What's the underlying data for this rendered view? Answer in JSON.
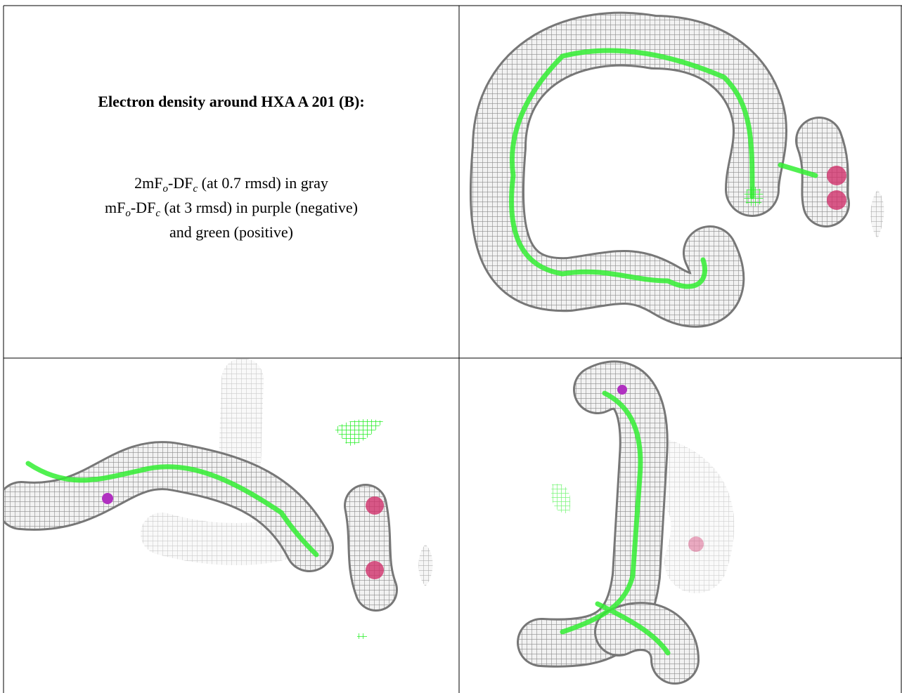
{
  "caption": {
    "title": "Electron density around HXA A 201 (B):",
    "lines": [
      [
        "2mF",
        "o",
        "-DF",
        "c",
        " (at 0.7 rmsd) in gray"
      ],
      [
        "mF",
        "o",
        "-DF",
        "c",
        " (at 3 rmsd) in purple (negative)"
      ],
      [
        "and green (positive)"
      ]
    ]
  }
}
